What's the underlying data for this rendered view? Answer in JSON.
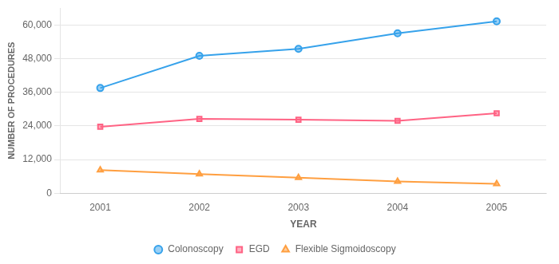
{
  "chart_data": {
    "type": "line",
    "x_label": "YEAR",
    "y_label": "NUMBER OF PROCEDURES",
    "x": [
      2001,
      2002,
      2003,
      2004,
      2005
    ],
    "series": [
      {
        "name": "Colonoscopy",
        "values": [
          37510,
          49000,
          51500,
          57000,
          61301
        ],
        "marker": "circle"
      },
      {
        "name": "EGD",
        "values": [
          23695,
          26500,
          26200,
          25800,
          28505
        ],
        "marker": "square"
      },
      {
        "name": "Flexible Sigmoidoscopy",
        "values": [
          8243,
          6800,
          5500,
          4200,
          3301
        ],
        "marker": "triangle"
      }
    ],
    "xlim": [
      2000.6,
      2005.5
    ],
    "xticks": [
      2001,
      2002,
      2003,
      2004,
      2005
    ],
    "ylim": [
      0,
      66000
    ],
    "yticks": [
      0,
      {
        "value": 12000,
        "label": "12,000"
      },
      {
        "value": 24000,
        "label": "24,000"
      },
      {
        "value": 36000,
        "label": "36,000"
      },
      {
        "value": 48000,
        "label": "48,000"
      },
      {
        "value": 60000,
        "label": "60,000"
      }
    ],
    "grid": "y",
    "legend": "bottom"
  }
}
